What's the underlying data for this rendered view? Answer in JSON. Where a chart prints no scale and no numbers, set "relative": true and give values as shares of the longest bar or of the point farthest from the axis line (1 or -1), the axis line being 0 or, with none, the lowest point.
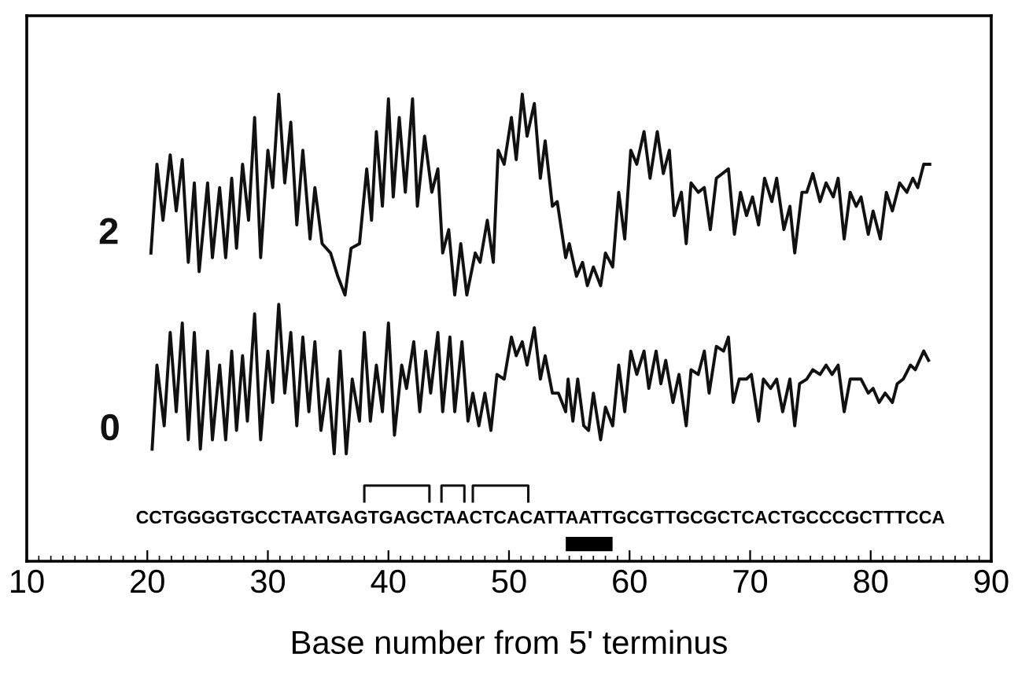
{
  "chart_data": {
    "type": "line",
    "relative": true,
    "xlabel": "Base number from 5' terminus",
    "xlim": [
      10,
      90
    ],
    "xticks": [
      10,
      20,
      30,
      40,
      50,
      60,
      70,
      80,
      90
    ],
    "tick_labels": "x",
    "grid": false,
    "legend": false,
    "marker": "none",
    "line_style": "solid",
    "annotations": [
      "CCTGGGGTGCCTAATGAGTGAGCTAACTCACATTAATTGCGTTGCGCTCACTGCCCGCTTTCCA"
    ],
    "series": [
      {
        "name": "2",
        "color": "#111111",
        "x": [
          20.3,
          20.8,
          21.3,
          21.9,
          22.4,
          22.9,
          23.4,
          23.9,
          24.3,
          25.0,
          25.4,
          26.0,
          26.5,
          27.0,
          27.4,
          27.9,
          28.4,
          28.9,
          29.4,
          30.0,
          30.4,
          30.9,
          31.4,
          31.9,
          32.4,
          32.9,
          33.5,
          33.9,
          34.5,
          35.2,
          35.8,
          36.4,
          36.9,
          37.6,
          38.2,
          38.6,
          39.0,
          39.5,
          40.0,
          40.4,
          40.9,
          41.4,
          42.0,
          42.4,
          43.0,
          43.6,
          44.1,
          44.5,
          45.0,
          45.5,
          46.0,
          46.5,
          47.2,
          47.6,
          48.2,
          48.7,
          49.1,
          49.6,
          50.2,
          50.6,
          51.1,
          51.5,
          52.1,
          52.6,
          53.0,
          53.6,
          54.0,
          54.7,
          55.0,
          55.6,
          56.1,
          56.5,
          57.0,
          57.6,
          58.0,
          58.6,
          59.1,
          59.6,
          60.1,
          60.6,
          61.2,
          61.7,
          62.3,
          62.8,
          63.3,
          63.7,
          64.3,
          64.7,
          65.1,
          65.7,
          66.2,
          66.7,
          67.2,
          68.2,
          68.7,
          69.2,
          69.7,
          70.2,
          70.7,
          71.2,
          71.8,
          72.2,
          72.8,
          73.3,
          73.7,
          74.3,
          74.7,
          75.2,
          75.8,
          76.3,
          76.9,
          77.3,
          77.8,
          78.3,
          78.8,
          79.2,
          79.8,
          80.2,
          80.8,
          81.3,
          81.8,
          82.4,
          83.0,
          83.5,
          83.9,
          84.4,
          84.9
        ],
        "values": [
          0.66,
          0.85,
          0.73,
          0.87,
          0.75,
          0.86,
          0.64,
          0.81,
          0.62,
          0.81,
          0.65,
          0.8,
          0.65,
          0.82,
          0.67,
          0.85,
          0.73,
          0.95,
          0.65,
          0.88,
          0.8,
          1.0,
          0.81,
          0.94,
          0.72,
          0.88,
          0.69,
          0.8,
          0.68,
          0.66,
          0.61,
          0.57,
          0.67,
          0.68,
          0.84,
          0.73,
          0.92,
          0.76,
          0.99,
          0.78,
          0.95,
          0.79,
          0.99,
          0.76,
          0.91,
          0.79,
          0.84,
          0.66,
          0.71,
          0.57,
          0.68,
          0.57,
          0.66,
          0.64,
          0.73,
          0.64,
          0.88,
          0.85,
          0.95,
          0.86,
          1.0,
          0.91,
          0.98,
          0.82,
          0.9,
          0.76,
          0.77,
          0.65,
          0.68,
          0.61,
          0.64,
          0.59,
          0.63,
          0.59,
          0.66,
          0.63,
          0.79,
          0.69,
          0.88,
          0.85,
          0.92,
          0.82,
          0.92,
          0.83,
          0.88,
          0.74,
          0.79,
          0.68,
          0.81,
          0.79,
          0.8,
          0.71,
          0.82,
          0.84,
          0.7,
          0.79,
          0.74,
          0.78,
          0.72,
          0.82,
          0.77,
          0.82,
          0.71,
          0.76,
          0.66,
          0.79,
          0.79,
          0.83,
          0.77,
          0.81,
          0.78,
          0.82,
          0.69,
          0.79,
          0.76,
          0.78,
          0.7,
          0.75,
          0.69,
          0.79,
          0.75,
          0.81,
          0.79,
          0.82,
          0.8,
          0.85,
          0.85
        ]
      },
      {
        "name": "0",
        "color": "#111111",
        "x": [
          20.4,
          20.8,
          21.4,
          21.9,
          22.4,
          22.9,
          23.4,
          23.9,
          24.4,
          25.0,
          25.4,
          26.0,
          26.5,
          27.0,
          27.4,
          27.9,
          28.3,
          28.9,
          29.4,
          30.0,
          30.4,
          30.9,
          31.4,
          31.9,
          32.4,
          32.9,
          33.4,
          33.9,
          34.4,
          35.0,
          35.5,
          36.0,
          36.5,
          37.0,
          37.6,
          38.0,
          38.5,
          39.0,
          39.5,
          40.0,
          40.5,
          41.1,
          41.5,
          42.1,
          42.6,
          43.1,
          43.5,
          44.1,
          44.5,
          45.1,
          45.5,
          46.1,
          46.6,
          47.0,
          47.5,
          48.0,
          48.5,
          49.0,
          49.6,
          50.2,
          50.6,
          51.1,
          51.5,
          52.1,
          52.6,
          53.0,
          53.6,
          54.1,
          54.7,
          54.9,
          55.3,
          55.7,
          56.2,
          56.6,
          57.0,
          57.6,
          58.0,
          58.6,
          59.1,
          59.6,
          60.1,
          60.6,
          61.2,
          61.6,
          62.2,
          62.6,
          63.0,
          63.6,
          64.1,
          64.7,
          65.1,
          65.7,
          66.2,
          66.6,
          67.2,
          67.8,
          68.2,
          68.6,
          69.1,
          69.7,
          70.1,
          70.7,
          71.1,
          71.7,
          72.2,
          72.7,
          73.3,
          73.7,
          74.1,
          74.7,
          75.2,
          75.8,
          76.3,
          76.8,
          77.3,
          77.8,
          78.3,
          78.8,
          79.2,
          79.8,
          80.2,
          80.7,
          81.2,
          81.8,
          82.2,
          82.7,
          83.3,
          83.7,
          84.4,
          84.8
        ],
        "values": [
          0.24,
          0.42,
          0.29,
          0.49,
          0.32,
          0.51,
          0.26,
          0.49,
          0.24,
          0.45,
          0.26,
          0.42,
          0.26,
          0.45,
          0.28,
          0.44,
          0.3,
          0.53,
          0.26,
          0.45,
          0.34,
          0.55,
          0.36,
          0.49,
          0.29,
          0.48,
          0.32,
          0.47,
          0.28,
          0.39,
          0.23,
          0.45,
          0.23,
          0.39,
          0.3,
          0.49,
          0.3,
          0.42,
          0.32,
          0.51,
          0.27,
          0.42,
          0.37,
          0.47,
          0.32,
          0.45,
          0.36,
          0.49,
          0.32,
          0.48,
          0.32,
          0.47,
          0.3,
          0.36,
          0.29,
          0.36,
          0.28,
          0.4,
          0.39,
          0.48,
          0.44,
          0.47,
          0.42,
          0.5,
          0.39,
          0.44,
          0.36,
          0.36,
          0.32,
          0.39,
          0.3,
          0.39,
          0.29,
          0.28,
          0.36,
          0.26,
          0.33,
          0.29,
          0.42,
          0.32,
          0.45,
          0.4,
          0.45,
          0.37,
          0.45,
          0.38,
          0.43,
          0.34,
          0.4,
          0.29,
          0.41,
          0.4,
          0.45,
          0.36,
          0.46,
          0.45,
          0.48,
          0.34,
          0.39,
          0.39,
          0.4,
          0.3,
          0.39,
          0.37,
          0.39,
          0.32,
          0.39,
          0.29,
          0.38,
          0.39,
          0.41,
          0.4,
          0.42,
          0.4,
          0.42,
          0.32,
          0.39,
          0.39,
          0.39,
          0.36,
          0.37,
          0.34,
          0.36,
          0.34,
          0.38,
          0.39,
          0.42,
          0.41,
          0.45,
          0.43
        ]
      }
    ]
  }
}
